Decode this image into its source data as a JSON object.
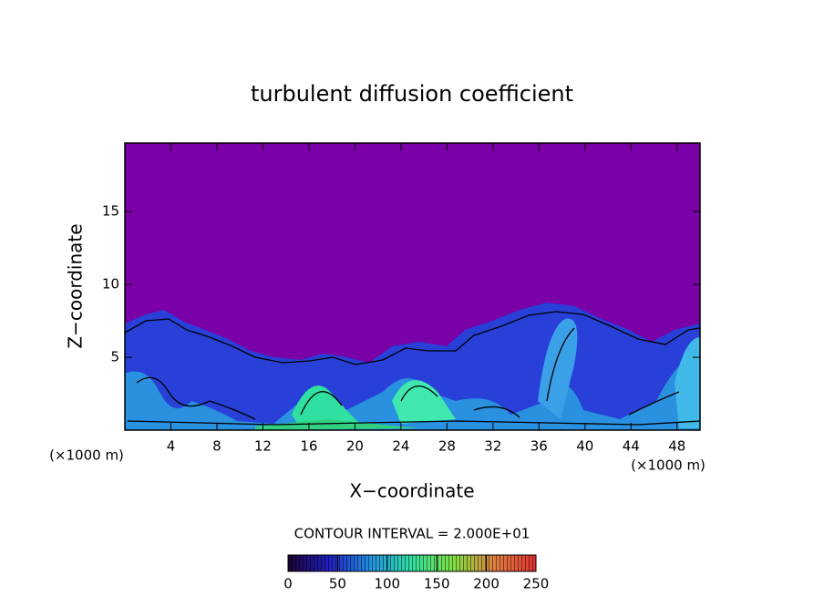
{
  "chart_data": {
    "type": "contour",
    "title": "turbulent diffusion coefficient",
    "x_label": "X−coordinate",
    "y_label": "Z−coordinate",
    "x_unit_left": "(×1000 m)",
    "x_unit_right": "(×1000 m)",
    "xlim": [
      0,
      50
    ],
    "ylim": [
      0,
      19.7
    ],
    "xticks": [
      4,
      8,
      12,
      16,
      20,
      24,
      28,
      32,
      36,
      40,
      44,
      48
    ],
    "yticks": [
      5,
      10,
      15
    ],
    "contour_interval": "CONTOUR INTERVAL = 2.000E+01",
    "colorbar": {
      "range": [
        0,
        250
      ],
      "ticks": [
        0,
        50,
        100,
        150,
        200,
        250
      ],
      "colors": [
        "#1a0033",
        "#2020c0",
        "#2090e0",
        "#30e0a0",
        "#80e040",
        "#e08040",
        "#e03030"
      ]
    }
  }
}
